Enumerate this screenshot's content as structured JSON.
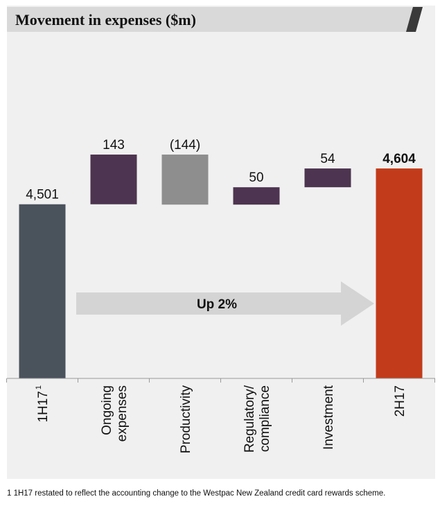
{
  "title": "Movement in expenses ($m)",
  "footnote": "1 1H17 restated to reflect the accounting change to the Westpac New Zealand credit card rewards scheme.",
  "arrow_label": "Up 2%",
  "colors": {
    "start_bar": "#4a525c",
    "increase": "#4d3450",
    "decrease": "#8e8e8e",
    "end_bar": "#c23b1a",
    "arrow": "#d4d4d4"
  },
  "chart_data": {
    "type": "bar",
    "subtype": "waterfall",
    "title": "Movement in expenses ($m)",
    "categories": [
      "1H17",
      "Ongoing expenses",
      "Productivity",
      "Regulatory/ compliance",
      "Investment",
      "2H17"
    ],
    "category_lines": [
      [
        "1H17"
      ],
      [
        "Ongoing",
        "expenses"
      ],
      [
        "Productivity"
      ],
      [
        "Regulatory/",
        "compliance"
      ],
      [
        "Investment"
      ],
      [
        "2H17"
      ]
    ],
    "category_superscripts": [
      "1",
      "",
      "",
      "",
      "",
      ""
    ],
    "values": [
      4501,
      143,
      -144,
      50,
      54,
      4604
    ],
    "value_labels": [
      "4,501",
      "143",
      "(144)",
      "50",
      "54",
      "4,604"
    ],
    "kinds": [
      "total",
      "delta",
      "delta",
      "delta",
      "delta",
      "total"
    ],
    "bold_labels": [
      false,
      false,
      false,
      false,
      false,
      true
    ],
    "annotation": "Up 2%"
  }
}
